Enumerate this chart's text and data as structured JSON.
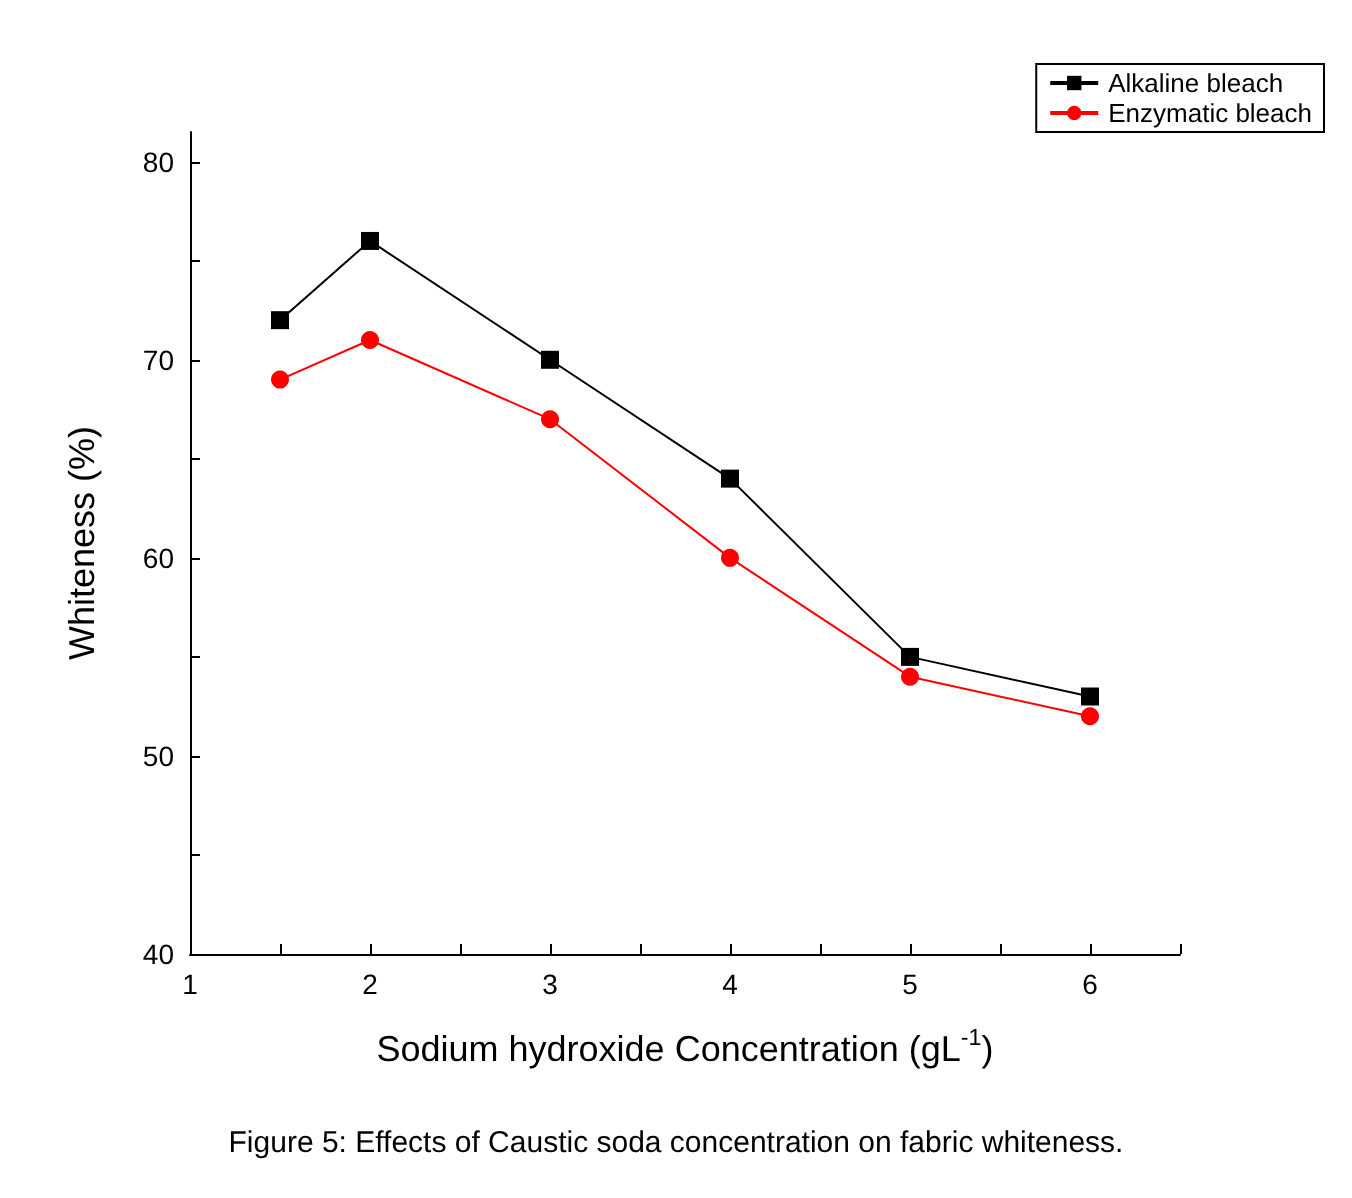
{
  "chart_data": {
    "type": "line",
    "xlabel": "Sodium hydroxide Concentration (gL$^{-1}$)",
    "ylabel": "Whiteness (%)",
    "x": [
      1.5,
      2,
      3,
      4,
      5,
      6
    ],
    "series": [
      {
        "name": "Alkaline bleach",
        "color": "#000000",
        "marker": "square",
        "values": [
          72,
          76,
          70,
          64,
          55,
          53
        ]
      },
      {
        "name": "Enzymatic bleach",
        "color": "#ff0000",
        "marker": "circle",
        "values": [
          69,
          71,
          67,
          60,
          54,
          52
        ]
      }
    ],
    "xlim": [
      1,
      6.5
    ],
    "xticks": [
      1,
      {
        "value": 1.5,
        "label": null
      },
      2,
      {
        "value": 2.5,
        "label": null
      },
      3,
      {
        "value": 3.5,
        "label": null
      },
      4,
      {
        "value": 4.5,
        "label": null
      },
      5,
      {
        "value": 5.5,
        "label": null
      },
      6,
      {
        "value": 6.5,
        "label": null
      }
    ],
    "ylim": [
      40,
      81.5
    ],
    "yticks": [
      40,
      {
        "value": 45,
        "label": null
      },
      50,
      {
        "value": 55,
        "label": null
      },
      60,
      {
        "value": 65,
        "label": null
      },
      70,
      {
        "value": 75,
        "label": null
      },
      80
    ],
    "grid": false,
    "legend": "top right",
    "line_style": "solid",
    "annotations": [
      "Figure 5: Effects of Caustic soda concentration on fabric whiteness."
    ]
  }
}
